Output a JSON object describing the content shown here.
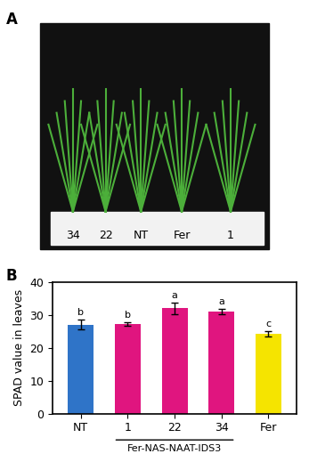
{
  "panel_labels": [
    "A",
    "B"
  ],
  "photo_labels": [
    "34",
    "22",
    "NT",
    "Fer",
    "1"
  ],
  "chart_data": {
    "type": "bar",
    "ylabel": "SPAD value in leaves",
    "categories": [
      "NT",
      "1",
      "22",
      "34",
      "Fer"
    ],
    "values": [
      27.0,
      27.2,
      32.0,
      31.0,
      24.2
    ],
    "errors": [
      1.5,
      0.6,
      1.8,
      0.8,
      0.8
    ],
    "significance": [
      "b",
      "b",
      "a",
      "a",
      "c"
    ],
    "colors": [
      "#2f74c8",
      "#e0157f",
      "#e0157f",
      "#e0157f",
      "#f5e400"
    ],
    "group": {
      "label": "Fer-NAS-NAAT-IDS3",
      "members": [
        "1",
        "22",
        "34"
      ]
    },
    "ylim": [
      0,
      40
    ],
    "yticks": [
      0,
      10,
      20,
      30,
      40
    ]
  }
}
